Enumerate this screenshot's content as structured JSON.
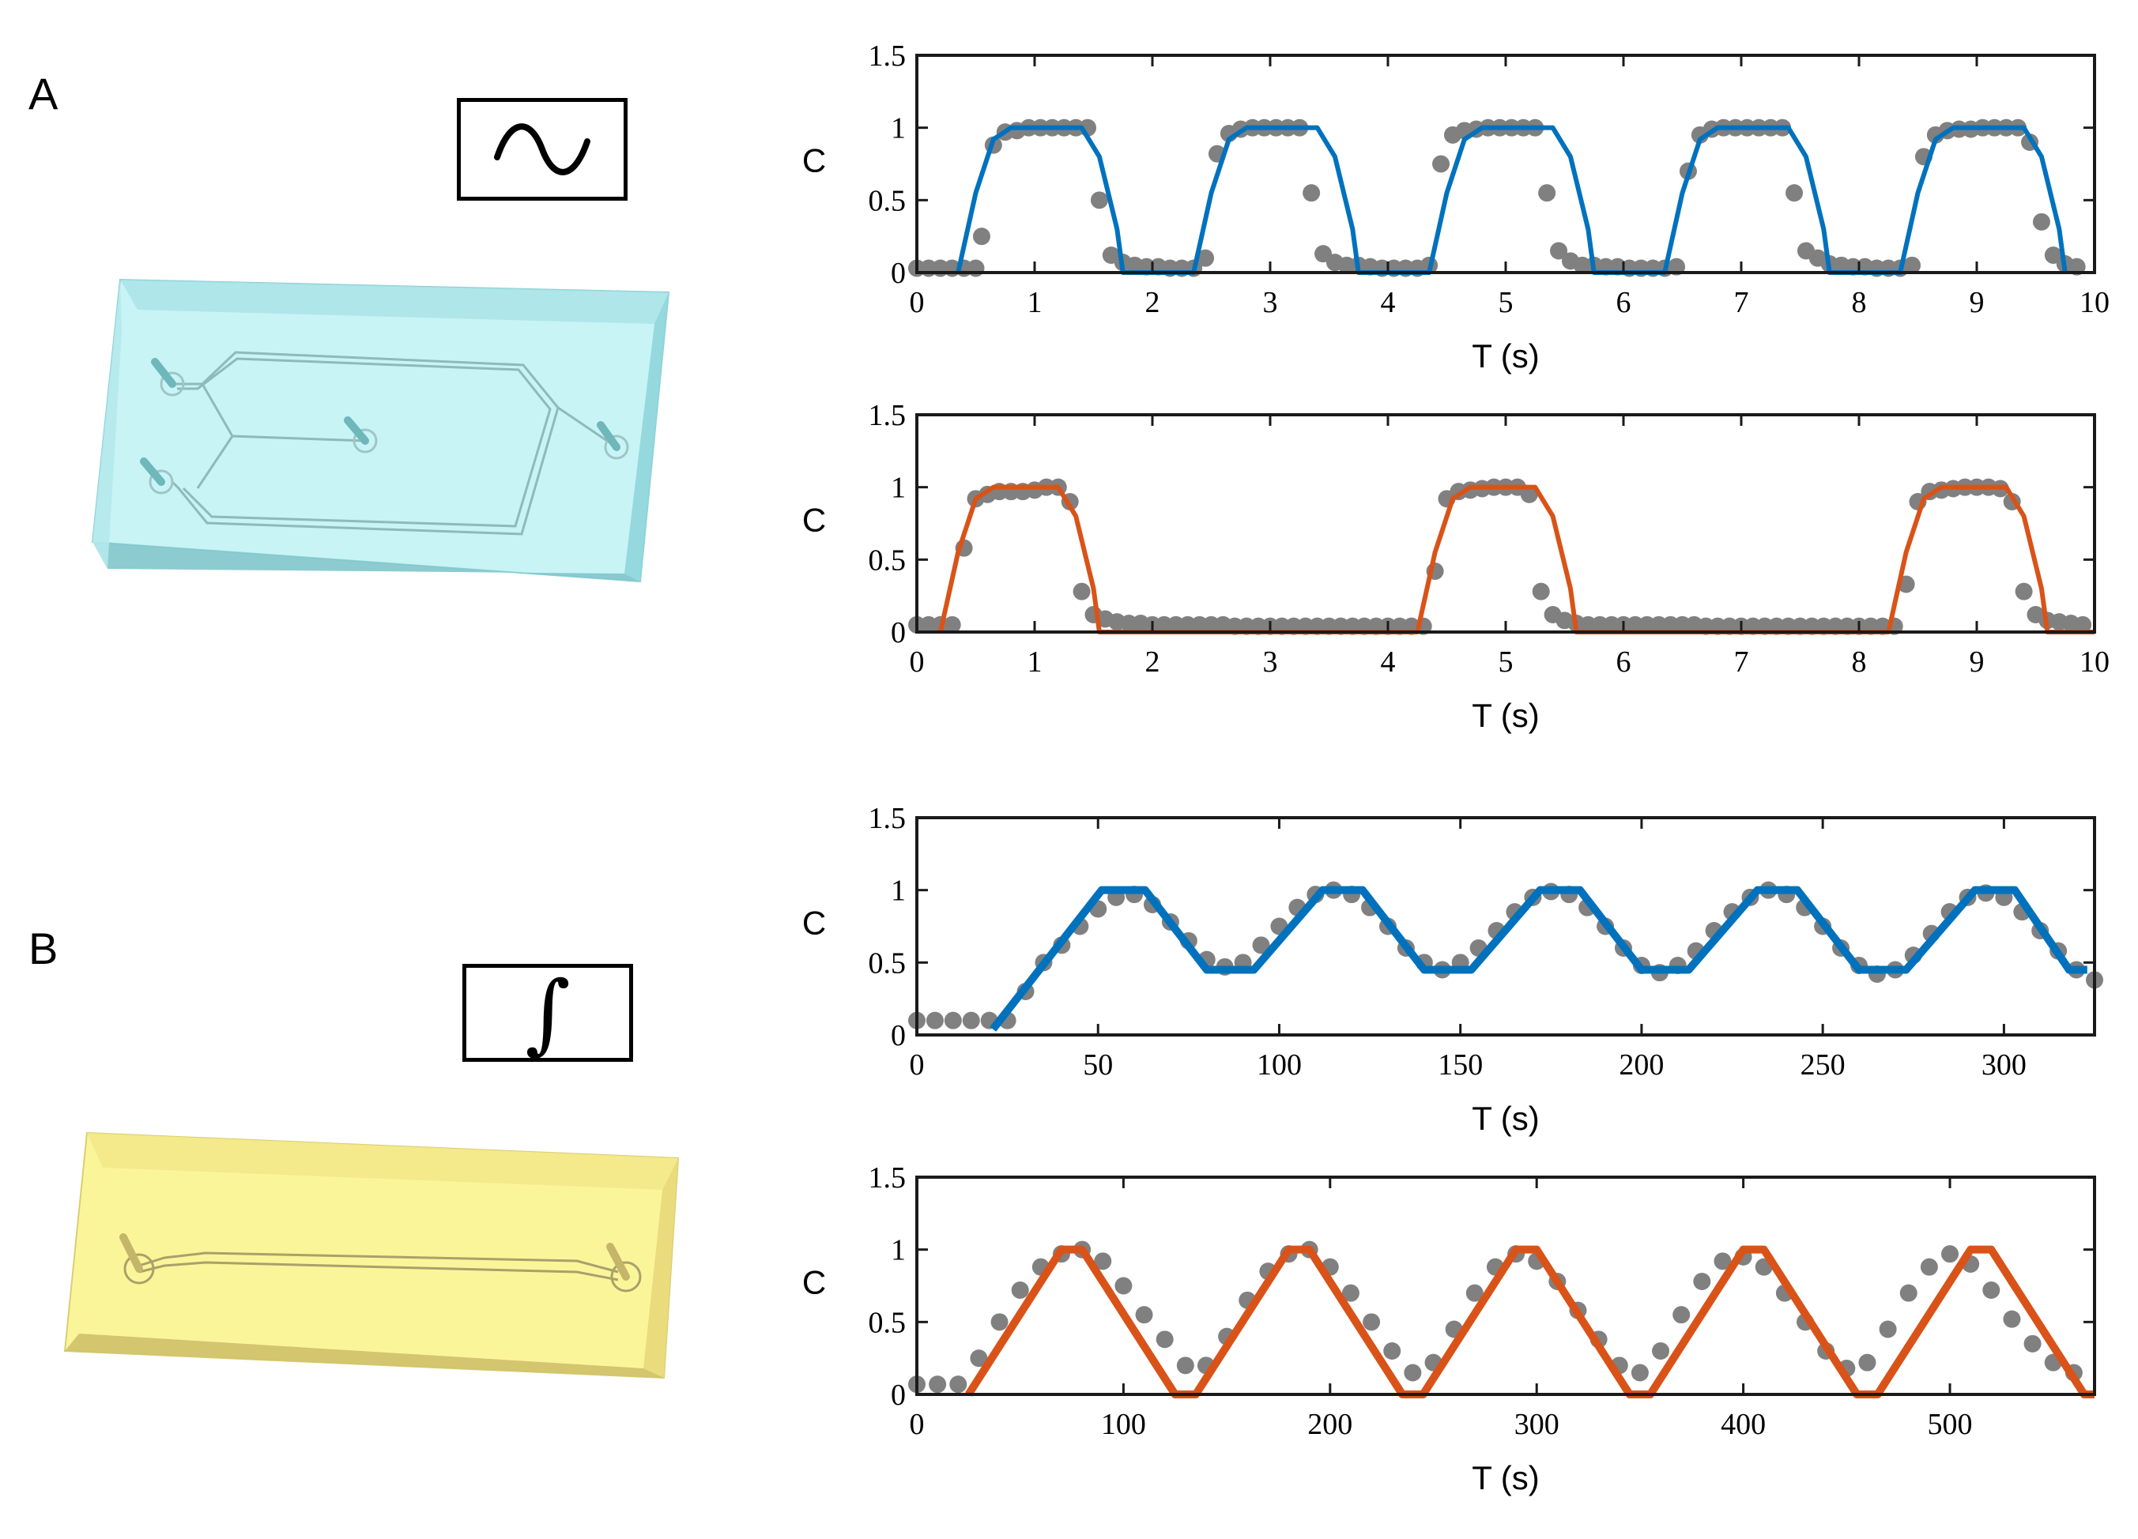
{
  "panels": {
    "a": "A",
    "b": "B"
  },
  "icons": {
    "a": "sine-wave-icon",
    "b": "integral-icon",
    "b_symbol": "∫"
  },
  "colors": {
    "blue": "#0072BD",
    "orange": "#D95319",
    "dots": "#808080",
    "chip_a": "#c8f4f6",
    "chip_b": "#fbf59a"
  },
  "chart_data": [
    {
      "id": "a1",
      "type": "line",
      "xlabel": "T (s)",
      "ylabel": "C",
      "xlim": [
        0,
        10
      ],
      "ylim": [
        0,
        1.5
      ],
      "xticks": [
        0,
        1,
        2,
        3,
        4,
        5,
        6,
        7,
        8,
        9,
        10
      ],
      "yticks": [
        0,
        0.5,
        1,
        1.5
      ],
      "ytick_labels": [
        "0",
        "0.5",
        "1",
        "1.5"
      ],
      "series": [
        {
          "style": "line",
          "color": "#0072BD",
          "x": [
            0.35,
            0.5,
            0.65,
            0.8,
            1.4,
            1.55,
            1.7,
            1.75,
            2.35,
            2.5,
            2.65,
            2.8,
            3.4,
            3.55,
            3.7,
            3.75,
            4.35,
            4.5,
            4.65,
            4.8,
            5.4,
            5.55,
            5.7,
            5.75,
            6.35,
            6.5,
            6.65,
            6.8,
            7.4,
            7.55,
            7.7,
            7.75,
            8.35,
            8.5,
            8.65,
            8.8,
            9.4,
            9.55,
            9.7,
            9.75
          ],
          "y": [
            0,
            0.55,
            0.92,
            1,
            1,
            0.8,
            0.3,
            0,
            0,
            0.55,
            0.92,
            1,
            1,
            0.8,
            0.3,
            0,
            0,
            0.55,
            0.92,
            1,
            1,
            0.8,
            0.3,
            0,
            0,
            0.55,
            0.92,
            1,
            1,
            0.8,
            0.3,
            0,
            0,
            0.55,
            0.92,
            1,
            1,
            0.8,
            0.3,
            0
          ]
        },
        {
          "style": "markers",
          "color": "#808080",
          "x": [
            0,
            0.1,
            0.2,
            0.3,
            0.4,
            0.5,
            0.55,
            0.65,
            0.75,
            0.85,
            0.95,
            1.05,
            1.15,
            1.25,
            1.35,
            1.45,
            1.55,
            1.65,
            1.75,
            1.85,
            1.95,
            2.05,
            2.15,
            2.25,
            2.35,
            2.45,
            2.55,
            2.65,
            2.75,
            2.85,
            2.95,
            3.05,
            3.15,
            3.25,
            3.35,
            3.45,
            3.55,
            3.65,
            3.75,
            3.85,
            3.95,
            4.05,
            4.15,
            4.25,
            4.35,
            4.45,
            4.55,
            4.65,
            4.75,
            4.85,
            4.95,
            5.05,
            5.15,
            5.25,
            5.35,
            5.45,
            5.55,
            5.65,
            5.75,
            5.85,
            5.95,
            6.05,
            6.15,
            6.25,
            6.35,
            6.45,
            6.55,
            6.65,
            6.75,
            6.85,
            6.95,
            7.05,
            7.15,
            7.25,
            7.35,
            7.45,
            7.55,
            7.65,
            7.75,
            7.85,
            7.95,
            8.05,
            8.15,
            8.25,
            8.35,
            8.45,
            8.55,
            8.65,
            8.75,
            8.85,
            8.95,
            9.05,
            9.15,
            9.25,
            9.35,
            9.45,
            9.55,
            9.65,
            9.75,
            9.85
          ],
          "y": [
            0.03,
            0.03,
            0.03,
            0.03,
            0.03,
            0.03,
            0.25,
            0.88,
            0.97,
            0.98,
            1,
            1,
            1,
            1,
            1,
            1,
            0.5,
            0.12,
            0.07,
            0.05,
            0.04,
            0.04,
            0.03,
            0.03,
            0.03,
            0.1,
            0.82,
            0.96,
            0.99,
            1,
            1,
            1,
            1,
            1,
            0.55,
            0.13,
            0.07,
            0.05,
            0.05,
            0.04,
            0.03,
            0.03,
            0.03,
            0.03,
            0.05,
            0.75,
            0.95,
            0.98,
            0.99,
            1,
            1,
            1,
            1,
            1,
            0.55,
            0.15,
            0.08,
            0.05,
            0.05,
            0.04,
            0.04,
            0.03,
            0.03,
            0.03,
            0.03,
            0.04,
            0.7,
            0.95,
            0.99,
            1,
            1,
            1,
            1,
            1,
            1,
            0.55,
            0.15,
            0.1,
            0.06,
            0.05,
            0.04,
            0.04,
            0.03,
            0.03,
            0.03,
            0.05,
            0.8,
            0.95,
            0.98,
            0.99,
            0.99,
            1,
            1,
            1,
            1,
            0.9,
            0.35,
            0.12,
            0.06,
            0.04
          ]
        }
      ]
    },
    {
      "id": "a2",
      "type": "line",
      "xlabel": "T (s)",
      "ylabel": "C",
      "xlim": [
        0,
        10
      ],
      "ylim": [
        0,
        1.5
      ],
      "xticks": [
        0,
        1,
        2,
        3,
        4,
        5,
        6,
        7,
        8,
        9,
        10
      ],
      "yticks": [
        0,
        0.5,
        1,
        1.5
      ],
      "ytick_labels": [
        "0",
        "0.5",
        "1",
        "1.5"
      ],
      "series": [
        {
          "style": "line",
          "color": "#D95319",
          "x": [
            0.2,
            0.35,
            0.5,
            0.65,
            1.2,
            1.35,
            1.5,
            1.55,
            4.25,
            4.4,
            4.55,
            4.7,
            5.25,
            5.4,
            5.55,
            5.6,
            8.25,
            8.4,
            8.55,
            8.7,
            9.25,
            9.4,
            9.55,
            9.6,
            10
          ],
          "y": [
            0,
            0.55,
            0.92,
            1,
            1,
            0.8,
            0.3,
            0,
            0,
            0.55,
            0.92,
            1,
            1,
            0.8,
            0.3,
            0,
            0,
            0.55,
            0.92,
            1,
            1,
            0.8,
            0.3,
            0,
            0
          ]
        },
        {
          "style": "markers",
          "color": "#808080",
          "x": [
            0,
            0.1,
            0.2,
            0.3,
            0.4,
            0.5,
            0.6,
            0.7,
            0.8,
            0.9,
            1.0,
            1.1,
            1.2,
            1.3,
            1.4,
            1.5,
            1.6,
            1.7,
            1.8,
            1.9,
            2.0,
            2.1,
            2.2,
            2.3,
            2.4,
            2.5,
            2.6,
            2.7,
            2.8,
            2.9,
            3.0,
            3.1,
            3.2,
            3.3,
            3.4,
            3.5,
            3.6,
            3.7,
            3.8,
            3.9,
            4.0,
            4.1,
            4.2,
            4.3,
            4.4,
            4.5,
            4.6,
            4.7,
            4.8,
            4.9,
            5.0,
            5.1,
            5.2,
            5.3,
            5.4,
            5.5,
            5.6,
            5.7,
            5.8,
            5.9,
            6.0,
            6.1,
            6.2,
            6.3,
            6.4,
            6.5,
            6.6,
            6.7,
            6.8,
            6.9,
            7.0,
            7.1,
            7.2,
            7.3,
            7.4,
            7.5,
            7.6,
            7.7,
            7.8,
            7.9,
            8.0,
            8.1,
            8.2,
            8.3,
            8.4,
            8.5,
            8.6,
            8.7,
            8.8,
            8.9,
            9.0,
            9.1,
            9.2,
            9.3,
            9.4,
            9.5,
            9.6,
            9.7,
            9.8,
            9.9
          ],
          "y": [
            0.05,
            0.05,
            0.05,
            0.05,
            0.58,
            0.92,
            0.95,
            0.97,
            0.97,
            0.97,
            0.98,
            1,
            1,
            0.9,
            0.28,
            0.12,
            0.09,
            0.07,
            0.06,
            0.06,
            0.05,
            0.05,
            0.05,
            0.05,
            0.05,
            0.05,
            0.05,
            0.04,
            0.04,
            0.04,
            0.04,
            0.04,
            0.04,
            0.04,
            0.04,
            0.04,
            0.04,
            0.04,
            0.04,
            0.04,
            0.04,
            0.04,
            0.04,
            0.04,
            0.42,
            0.92,
            0.97,
            0.98,
            0.99,
            1,
            1,
            1,
            0.95,
            0.28,
            0.12,
            0.08,
            0.06,
            0.05,
            0.05,
            0.05,
            0.05,
            0.05,
            0.05,
            0.05,
            0.05,
            0.05,
            0.05,
            0.04,
            0.04,
            0.04,
            0.04,
            0.04,
            0.04,
            0.04,
            0.04,
            0.04,
            0.04,
            0.04,
            0.04,
            0.04,
            0.04,
            0.04,
            0.04,
            0.04,
            0.33,
            0.9,
            0.97,
            0.98,
            0.99,
            1,
            1,
            1,
            0.99,
            0.9,
            0.28,
            0.12,
            0.08,
            0.07,
            0.06,
            0.05
          ]
        }
      ]
    },
    {
      "id": "b1",
      "type": "line",
      "xlabel": "T (s)",
      "ylabel": "C",
      "xlim": [
        0,
        325
      ],
      "ylim": [
        0,
        1.5
      ],
      "xticks": [
        0,
        50,
        100,
        150,
        200,
        250,
        300
      ],
      "yticks": [
        0,
        0.5,
        1,
        1.5
      ],
      "ytick_labels": [
        "0",
        "0.5",
        "1",
        "1.5"
      ],
      "series": [
        {
          "style": "line",
          "color": "#0072BD",
          "width": 10,
          "x": [
            21,
            51,
            63,
            80,
            93,
            112,
            123,
            140,
            153,
            172,
            183,
            200,
            213,
            232,
            243,
            260,
            273,
            292,
            303,
            318,
            323
          ],
          "y": [
            0.04,
            1,
            1,
            0.45,
            0.45,
            1,
            1,
            0.45,
            0.45,
            1,
            1,
            0.45,
            0.45,
            1,
            1,
            0.45,
            0.45,
            1,
            1,
            0.45,
            0.45
          ]
        },
        {
          "style": "markers",
          "color": "#808080",
          "x": [
            0,
            5,
            10,
            15,
            20,
            25,
            30,
            35,
            40,
            45,
            50,
            55,
            60,
            65,
            70,
            75,
            80,
            85,
            90,
            95,
            100,
            105,
            110,
            115,
            120,
            125,
            130,
            135,
            140,
            145,
            150,
            155,
            160,
            165,
            170,
            175,
            180,
            185,
            190,
            195,
            200,
            205,
            210,
            215,
            220,
            225,
            230,
            235,
            240,
            245,
            250,
            255,
            260,
            265,
            270,
            275,
            280,
            285,
            290,
            295,
            300,
            305,
            310,
            315,
            320,
            325
          ],
          "y": [
            0.1,
            0.1,
            0.1,
            0.1,
            0.1,
            0.1,
            0.3,
            0.5,
            0.62,
            0.75,
            0.87,
            0.95,
            0.97,
            0.9,
            0.78,
            0.65,
            0.52,
            0.47,
            0.5,
            0.62,
            0.75,
            0.88,
            0.97,
            1,
            0.97,
            0.88,
            0.75,
            0.6,
            0.5,
            0.45,
            0.5,
            0.6,
            0.72,
            0.85,
            0.95,
            0.99,
            0.97,
            0.88,
            0.75,
            0.6,
            0.48,
            0.43,
            0.48,
            0.58,
            0.72,
            0.85,
            0.95,
            1,
            0.97,
            0.88,
            0.75,
            0.6,
            0.48,
            0.42,
            0.45,
            0.55,
            0.7,
            0.85,
            0.95,
            0.98,
            0.95,
            0.85,
            0.72,
            0.58,
            0.45,
            0.38
          ]
        }
      ]
    },
    {
      "id": "b2",
      "type": "line",
      "xlabel": "T (s)",
      "ylabel": "C",
      "xlim": [
        0,
        570
      ],
      "ylim": [
        0,
        1.5
      ],
      "xticks": [
        0,
        100,
        200,
        300,
        400,
        500
      ],
      "yticks": [
        0,
        0.5,
        1,
        1.5
      ],
      "ytick_labels": [
        "0",
        "0.5",
        "1",
        "1.5"
      ],
      "series": [
        {
          "style": "line",
          "color": "#D95319",
          "width": 10,
          "x": [
            25,
            70,
            80,
            125,
            135,
            180,
            190,
            235,
            245,
            290,
            300,
            345,
            355,
            400,
            410,
            455,
            465,
            510,
            520,
            565,
            570
          ],
          "y": [
            0,
            1,
            1,
            0,
            0,
            1,
            1,
            0,
            0,
            1,
            1,
            0,
            0,
            1,
            1,
            0,
            0,
            1,
            1,
            0,
            0
          ]
        },
        {
          "style": "markers",
          "color": "#808080",
          "x": [
            0,
            10,
            20,
            30,
            40,
            50,
            60,
            70,
            80,
            90,
            100,
            110,
            120,
            130,
            140,
            150,
            160,
            170,
            180,
            190,
            200,
            210,
            220,
            230,
            240,
            250,
            260,
            270,
            280,
            290,
            300,
            310,
            320,
            330,
            340,
            350,
            360,
            370,
            380,
            390,
            400,
            410,
            420,
            430,
            440,
            450,
            460,
            470,
            480,
            490,
            500,
            510,
            520,
            530,
            540,
            550,
            560
          ],
          "y": [
            0.07,
            0.07,
            0.07,
            0.25,
            0.5,
            0.72,
            0.88,
            0.97,
            1,
            0.92,
            0.75,
            0.55,
            0.38,
            0.2,
            0.2,
            0.4,
            0.65,
            0.85,
            0.97,
            1,
            0.88,
            0.7,
            0.5,
            0.3,
            0.15,
            0.22,
            0.45,
            0.7,
            0.88,
            0.97,
            0.92,
            0.78,
            0.58,
            0.38,
            0.2,
            0.15,
            0.3,
            0.55,
            0.78,
            0.92,
            0.95,
            0.88,
            0.7,
            0.5,
            0.3,
            0.18,
            0.22,
            0.45,
            0.7,
            0.88,
            0.97,
            0.9,
            0.72,
            0.52,
            0.35,
            0.22,
            0.15
          ]
        }
      ]
    }
  ]
}
